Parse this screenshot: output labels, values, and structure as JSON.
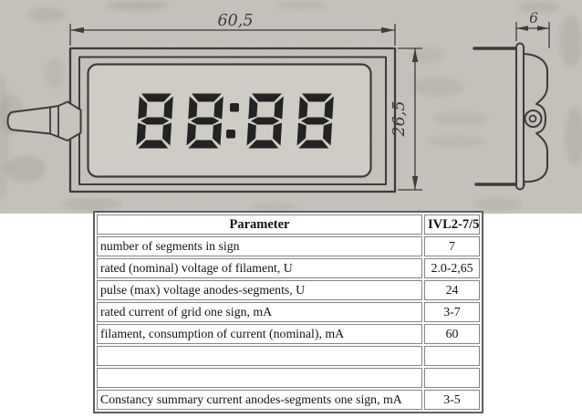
{
  "drawing": {
    "display_value": "88:88",
    "dimensions": {
      "width_mm": "60,5",
      "height_mm": "26,5",
      "depth_mm": "6"
    }
  },
  "table": {
    "header": {
      "parameter": "Parameter",
      "model": "IVL2-7/5"
    },
    "rows": [
      {
        "parameter": "number of segments in sign",
        "value": "7"
      },
      {
        "parameter": "rated (nominal) voltage of filament, U",
        "value": "2.0-2,65"
      },
      {
        "parameter": "pulse (max) voltage anodes-segments, U",
        "value": "24"
      },
      {
        "parameter": "rated current of grid one sign, mA",
        "value": "3-7"
      },
      {
        "parameter": "filament, consumption of current (nominal), mA",
        "value": "60"
      },
      {
        "parameter": "",
        "value": ""
      },
      {
        "parameter": "",
        "value": ""
      },
      {
        "parameter": "Constancy summary current anodes-segments one sign, mA",
        "value": "3-5"
      }
    ]
  },
  "colors": {
    "paper": "#c7c4bd",
    "display_window": "#cfccc6",
    "ink": "#3c3c3c",
    "digit_ink": "#232323",
    "table_border_outer": "#5e5e5e",
    "table_border_cell": "#858585"
  }
}
